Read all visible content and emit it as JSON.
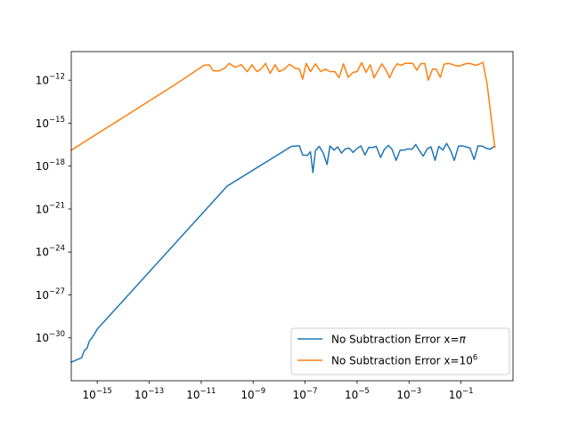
{
  "chart_data": {
    "type": "line",
    "title": "",
    "xlabel": "",
    "ylabel": "",
    "x_scale": "log",
    "y_scale": "log",
    "xlim": [
      1e-16,
      10
    ],
    "ylim": [
      1e-33,
      1e-10
    ],
    "grid": false,
    "legend_position": "lower-right",
    "x_ticks": [
      {
        "value": 1e-15,
        "base": "10",
        "exp": "−15"
      },
      {
        "value": 1e-13,
        "base": "10",
        "exp": "−13"
      },
      {
        "value": 1e-11,
        "base": "10",
        "exp": "−11"
      },
      {
        "value": 1e-09,
        "base": "10",
        "exp": "−9"
      },
      {
        "value": 1e-07,
        "base": "10",
        "exp": "−7"
      },
      {
        "value": 1e-05,
        "base": "10",
        "exp": "−5"
      },
      {
        "value": 0.001,
        "base": "10",
        "exp": "−3"
      },
      {
        "value": 0.1,
        "base": "10",
        "exp": "−1"
      }
    ],
    "y_ticks": [
      {
        "value": 1e-12,
        "base": "10",
        "exp": "−12"
      },
      {
        "value": 1e-15,
        "base": "10",
        "exp": "−15"
      },
      {
        "value": 1e-18,
        "base": "10",
        "exp": "−18"
      },
      {
        "value": 1e-21,
        "base": "10",
        "exp": "−21"
      },
      {
        "value": 1e-24,
        "base": "10",
        "exp": "−24"
      },
      {
        "value": 1e-27,
        "base": "10",
        "exp": "−27"
      },
      {
        "value": 1e-30,
        "base": "10",
        "exp": "−30"
      }
    ],
    "series": [
      {
        "name_prefix": "No Subtraction Error x=",
        "name_value": "π",
        "name_sup": "",
        "color": "#1f77b4",
        "points": [
          [
            1e-16,
            2e-32
          ],
          [
            2.5e-16,
            4e-32
          ],
          [
            3.2e-16,
            1.3e-31
          ],
          [
            4e-16,
            1.8e-31
          ],
          [
            5e-16,
            6e-31
          ],
          [
            6.3e-16,
            1e-30
          ],
          [
            1e-15,
            4e-30
          ],
          [
            1e-14,
            4e-28
          ],
          [
            1e-12,
            4e-24
          ],
          [
            1e-10,
            4e-20
          ],
          [
            3e-08,
            2.4e-17
          ],
          [
            6e-08,
            2.6e-17
          ],
          [
            8e-08,
            6e-18
          ],
          [
            1.2e-07,
            5.5e-18
          ],
          [
            1.6e-07,
            1e-17
          ],
          [
            2e-07,
            3.5e-19
          ],
          [
            2.5e-07,
            1.2e-17
          ],
          [
            3.5e-07,
            2.4e-17
          ],
          [
            5e-07,
            8e-18
          ],
          [
            7e-07,
            1.3e-18
          ],
          [
            9e-07,
            2.5e-17
          ],
          [
            1.3e-06,
            1.3e-17
          ],
          [
            1.8e-06,
            2.2e-17
          ],
          [
            2.5e-06,
            8e-18
          ],
          [
            3.5e-06,
            1.6e-17
          ],
          [
            5e-06,
            1.8e-17
          ],
          [
            7e-06,
            9e-18
          ],
          [
            1e-05,
            1.7e-17
          ],
          [
            1.4e-05,
            2.6e-17
          ],
          [
            2e-05,
            6e-18
          ],
          [
            2.8e-05,
            2e-17
          ],
          [
            4e-05,
            2e-17
          ],
          [
            5.5e-05,
            2.4e-17
          ],
          [
            8e-05,
            4e-18
          ],
          [
            0.00011,
            1.4e-17
          ],
          [
            0.00016,
            2.8e-17
          ],
          [
            0.00022,
            1.5e-17
          ],
          [
            0.00032,
            2.5e-18
          ],
          [
            0.00045,
            1.3e-17
          ],
          [
            0.00065,
            1.3e-17
          ],
          [
            0.0009,
            1.6e-17
          ],
          [
            0.0013,
            1.5e-17
          ],
          [
            0.0018,
            3.2e-17
          ],
          [
            0.0025,
            1.2e-17
          ],
          [
            0.0035,
            5e-18
          ],
          [
            0.005,
            1.6e-17
          ],
          [
            0.007,
            2.2e-17
          ],
          [
            0.01,
            2.5e-18
          ],
          [
            0.014,
            2.4e-17
          ],
          [
            0.02,
            1.3e-17
          ],
          [
            0.028,
            3.8e-17
          ],
          [
            0.04,
            1.2e-17
          ],
          [
            0.055,
            2.5e-18
          ],
          [
            0.08,
            2.5e-17
          ],
          [
            0.11,
            2.6e-17
          ],
          [
            0.16,
            2.2e-17
          ],
          [
            0.22,
            1.8e-17
          ],
          [
            0.32,
            2.9e-18
          ],
          [
            0.45,
            2.6e-17
          ],
          [
            0.65,
            2.5e-17
          ],
          [
            0.9,
            1.8e-17
          ],
          [
            1.3,
            1.5e-17
          ],
          [
            2,
            2.5e-17
          ]
        ]
      },
      {
        "name_prefix": "No Subtraction Error x=10",
        "name_value": "",
        "name_sup": "6",
        "color": "#ff7f0e",
        "points": [
          [
            1e-16,
            1.3e-17
          ],
          [
            1e-14,
            2.5e-15
          ],
          [
            1e-12,
            5e-13
          ],
          [
            1.3e-11,
            1.1e-11
          ],
          [
            2e-11,
            1.2e-11
          ],
          [
            3e-11,
            4.5e-12
          ],
          [
            5e-11,
            4.5e-12
          ],
          [
            8e-11,
            7e-12
          ],
          [
            1.2e-10,
            1.5e-11
          ],
          [
            2e-10,
            8e-12
          ],
          [
            3.5e-10,
            1.2e-11
          ],
          [
            6e-10,
            4e-12
          ],
          [
            9e-10,
            1.2e-11
          ],
          [
            1.4e-09,
            4e-12
          ],
          [
            2e-09,
            6e-12
          ],
          [
            3e-09,
            1.5e-11
          ],
          [
            4.5e-09,
            3e-12
          ],
          [
            7e-09,
            1.2e-11
          ],
          [
            1e-08,
            4e-12
          ],
          [
            1.6e-08,
            6e-12
          ],
          [
            2.5e-08,
            1.3e-11
          ],
          [
            4e-08,
            7e-12
          ],
          [
            6e-08,
            6e-12
          ],
          [
            8e-08,
            1.2e-12
          ],
          [
            1.1e-07,
            1.5e-11
          ],
          [
            1.6e-07,
            4e-12
          ],
          [
            2.5e-07,
            1.4e-11
          ],
          [
            4e-07,
            4e-12
          ],
          [
            6e-07,
            6e-12
          ],
          [
            9e-07,
            4e-12
          ],
          [
            1.4e-06,
            4e-12
          ],
          [
            2e-06,
            1.5e-12
          ],
          [
            3e-06,
            1.4e-11
          ],
          [
            4.5e-06,
            1.6e-12
          ],
          [
            7e-06,
            3.5e-12
          ],
          [
            1e-05,
            4e-12
          ],
          [
            1.5e-05,
            1.7e-11
          ],
          [
            2.2e-05,
            3.5e-12
          ],
          [
            3.2e-05,
            1.2e-11
          ],
          [
            4.5e-05,
            1.5e-12
          ],
          [
            6.5e-05,
            5e-12
          ],
          [
            9e-05,
            1.4e-11
          ],
          [
            0.00013,
            5e-12
          ],
          [
            0.00018,
            1.5e-12
          ],
          [
            0.00025,
            6e-12
          ],
          [
            0.00035,
            1.4e-11
          ],
          [
            0.0005,
            1.1e-11
          ],
          [
            0.0007,
            1.5e-11
          ],
          [
            0.001,
            1.5e-11
          ],
          [
            0.0014,
            1.5e-11
          ],
          [
            0.002,
            5e-12
          ],
          [
            0.0028,
            1.4e-11
          ],
          [
            0.004,
            1.5e-11
          ],
          [
            0.0055,
            1e-12
          ],
          [
            0.008,
            6e-12
          ],
          [
            0.011,
            6e-12
          ],
          [
            0.016,
            1.6e-12
          ],
          [
            0.022,
            1.3e-11
          ],
          [
            0.032,
            1.5e-11
          ],
          [
            0.045,
            1.3e-11
          ],
          [
            0.065,
            1e-11
          ],
          [
            0.09,
            1e-11
          ],
          [
            0.13,
            1.3e-11
          ],
          [
            0.18,
            1.5e-11
          ],
          [
            0.25,
            1.4e-11
          ],
          [
            0.35,
            1.1e-11
          ],
          [
            0.5,
            1.3e-11
          ],
          [
            0.7,
            1.8e-11
          ],
          [
            1,
            6e-13
          ],
          [
            2,
            2e-17
          ]
        ]
      }
    ]
  }
}
